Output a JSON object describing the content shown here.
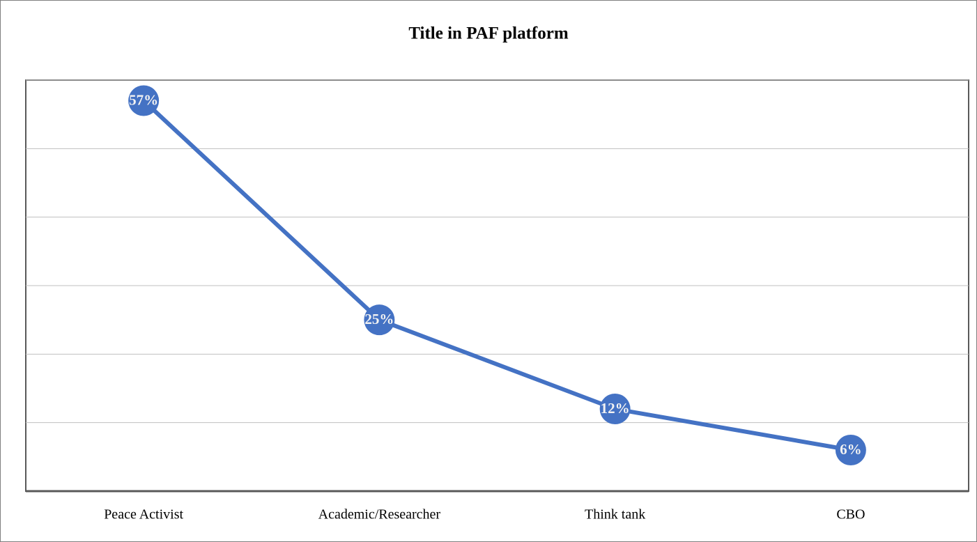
{
  "chart_data": {
    "type": "line",
    "title": "Title in PAF platform",
    "categories": [
      "Peace Activist",
      "Academic/Researcher",
      "Think tank",
      "CBO"
    ],
    "series": [
      {
        "color": "#4472c4",
        "values": [
          57,
          25,
          12,
          6
        ],
        "value_labels": [
          "57%",
          "25%",
          "12%",
          "6%"
        ]
      }
    ],
    "ylim": [
      0,
      60
    ],
    "yticks": [
      0,
      10,
      20,
      30,
      40,
      50,
      60
    ],
    "grid": true
  }
}
